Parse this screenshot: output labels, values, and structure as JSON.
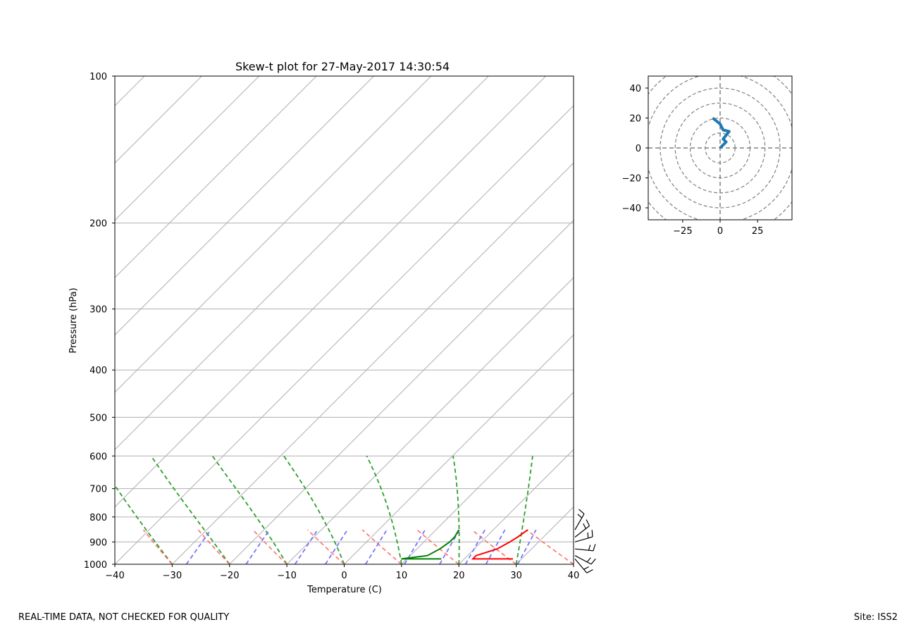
{
  "chart_data": [
    {
      "type": "line",
      "subtype": "skew-t",
      "title": "Skew-t plot for 27-May-2017 14:30:54",
      "xlabel": "Temperature (C)",
      "ylabel": "Pressure (hPa)",
      "xlim": [
        -40,
        40
      ],
      "ylim": [
        1000,
        100
      ],
      "y_scale": "log",
      "xticks": [
        "−40",
        "−30",
        "−20",
        "−10",
        "0",
        "10",
        "20",
        "30",
        "40"
      ],
      "yticks": [
        "100",
        "200",
        "300",
        "400",
        "500",
        "600",
        "700",
        "800",
        "900",
        "1000"
      ],
      "series": [
        {
          "color": "#ff0000",
          "pressure": [
            975,
            975,
            960,
            930,
            900,
            880,
            850
          ],
          "values": [
            28.5,
            21.5,
            21.5,
            24.0,
            25.0,
            25.5,
            26.0
          ]
        },
        {
          "color": "#008000",
          "pressure": [
            975,
            975,
            960,
            930,
            900,
            880,
            850
          ],
          "values": [
            16.0,
            9.0,
            13.0,
            14.0,
            14.5,
            14.5,
            14.0
          ]
        }
      ],
      "wind_barbs_pressure": [
        850,
        880,
        900,
        930,
        960,
        975
      ]
    },
    {
      "type": "line",
      "subtype": "hodograph",
      "xlim": [
        -48,
        48
      ],
      "ylim": [
        -48,
        48
      ],
      "xticks": [
        "−25",
        "0",
        "25"
      ],
      "yticks": [
        "40",
        "20",
        "0",
        "−20",
        "−40"
      ],
      "series": [
        {
          "color": "#1f77b4",
          "u": [
            -5,
            0,
            2,
            6,
            2,
            4,
            0
          ],
          "v": [
            20,
            16,
            12,
            11,
            6,
            4,
            0
          ]
        }
      ]
    }
  ],
  "footer": {
    "left": "REAL-TIME DATA, NOT CHECKED FOR QUALITY",
    "right": "Site: ISS2"
  }
}
